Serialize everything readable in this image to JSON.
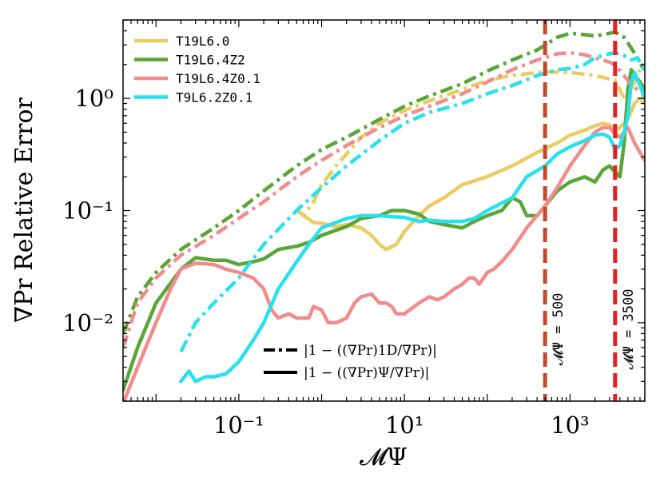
{
  "chart_data": {
    "type": "line",
    "xlabel": "𝓜Ψ",
    "ylabel": "∇Pr Relative Error",
    "xscale": "log",
    "yscale": "log",
    "xlim": [
      0.004,
      8000
    ],
    "ylim": [
      0.002,
      5
    ],
    "x_ticks": [
      {
        "value": 0.1,
        "label": "10⁻¹"
      },
      {
        "value": 10,
        "label": "10¹"
      },
      {
        "value": 1000,
        "label": "10³"
      }
    ],
    "y_ticks": [
      {
        "value": 0.01,
        "label": "10⁻²"
      },
      {
        "value": 0.1,
        "label": "10⁻¹"
      },
      {
        "value": 1,
        "label": "10⁰"
      }
    ],
    "series": [
      {
        "name": "T19L6.0",
        "color": "#e9cd62",
        "dashdot": [
          [
            0.5,
            0.105
          ],
          [
            0.6,
            0.09
          ],
          [
            0.8,
            0.12
          ],
          [
            1,
            0.17
          ],
          [
            1.5,
            0.25
          ],
          [
            2,
            0.32
          ],
          [
            3,
            0.45
          ],
          [
            5,
            0.6
          ],
          [
            8,
            0.72
          ],
          [
            10,
            0.78
          ],
          [
            20,
            0.95
          ],
          [
            50,
            1.2
          ],
          [
            100,
            1.45
          ],
          [
            200,
            1.6
          ],
          [
            400,
            1.7
          ],
          [
            600,
            1.72
          ],
          [
            1000,
            1.7
          ],
          [
            2000,
            1.6
          ],
          [
            3500,
            1.45
          ],
          [
            4500,
            1.0
          ],
          [
            5500,
            1.2
          ],
          [
            6500,
            1.6
          ],
          [
            7500,
            2.0
          ],
          [
            8000,
            1.9
          ]
        ],
        "solid": [
          [
            0.5,
            0.1
          ],
          [
            0.8,
            0.078
          ],
          [
            1,
            0.077
          ],
          [
            1.5,
            0.072
          ],
          [
            2,
            0.075
          ],
          [
            3,
            0.07
          ],
          [
            4,
            0.06
          ],
          [
            5,
            0.05
          ],
          [
            6,
            0.045
          ],
          [
            8,
            0.05
          ],
          [
            10,
            0.065
          ],
          [
            15,
            0.09
          ],
          [
            20,
            0.11
          ],
          [
            30,
            0.13
          ],
          [
            50,
            0.17
          ],
          [
            100,
            0.2
          ],
          [
            200,
            0.25
          ],
          [
            400,
            0.33
          ],
          [
            700,
            0.4
          ],
          [
            1000,
            0.47
          ],
          [
            1500,
            0.52
          ],
          [
            2000,
            0.57
          ],
          [
            2500,
            0.6
          ],
          [
            3000,
            0.58
          ],
          [
            3600,
            0.52
          ],
          [
            4000,
            0.55
          ],
          [
            5000,
            0.65
          ],
          [
            6000,
            0.9
          ],
          [
            7000,
            1.0
          ],
          [
            8000,
            0.9
          ]
        ]
      },
      {
        "name": "T19L6.4Z2",
        "color": "#5aa537",
        "dashdot": [
          [
            0.004,
            0.008
          ],
          [
            0.006,
            0.017
          ],
          [
            0.01,
            0.028
          ],
          [
            0.02,
            0.045
          ],
          [
            0.05,
            0.07
          ],
          [
            0.1,
            0.1
          ],
          [
            0.2,
            0.15
          ],
          [
            0.5,
            0.25
          ],
          [
            1,
            0.35
          ],
          [
            2,
            0.45
          ],
          [
            5,
            0.65
          ],
          [
            10,
            0.85
          ],
          [
            20,
            1.05
          ],
          [
            50,
            1.35
          ],
          [
            100,
            1.75
          ],
          [
            200,
            2.2
          ],
          [
            400,
            2.7
          ],
          [
            700,
            3.5
          ],
          [
            1000,
            3.8
          ],
          [
            1500,
            3.7
          ],
          [
            2000,
            3.6
          ],
          [
            3000,
            3.8
          ],
          [
            3500,
            3.9
          ],
          [
            4500,
            3.5
          ],
          [
            5500,
            2.8
          ],
          [
            6500,
            2.3
          ],
          [
            7500,
            1.9
          ],
          [
            8000,
            1.8
          ]
        ],
        "solid": [
          [
            0.004,
            0.0025
          ],
          [
            0.006,
            0.006
          ],
          [
            0.01,
            0.015
          ],
          [
            0.02,
            0.03
          ],
          [
            0.03,
            0.038
          ],
          [
            0.05,
            0.036
          ],
          [
            0.07,
            0.036
          ],
          [
            0.1,
            0.033
          ],
          [
            0.15,
            0.035
          ],
          [
            0.2,
            0.037
          ],
          [
            0.3,
            0.045
          ],
          [
            0.5,
            0.048
          ],
          [
            0.7,
            0.052
          ],
          [
            1,
            0.06
          ],
          [
            2,
            0.072
          ],
          [
            3,
            0.085
          ],
          [
            5,
            0.09
          ],
          [
            7,
            0.1
          ],
          [
            10,
            0.1
          ],
          [
            15,
            0.093
          ],
          [
            20,
            0.08
          ],
          [
            30,
            0.075
          ],
          [
            50,
            0.07
          ],
          [
            70,
            0.08
          ],
          [
            100,
            0.09
          ],
          [
            150,
            0.1
          ],
          [
            200,
            0.13
          ],
          [
            250,
            0.12
          ],
          [
            300,
            0.09
          ],
          [
            400,
            0.09
          ],
          [
            500,
            0.11
          ],
          [
            700,
            0.15
          ],
          [
            1000,
            0.18
          ],
          [
            1500,
            0.2
          ],
          [
            2000,
            0.18
          ],
          [
            2500,
            0.23
          ],
          [
            3000,
            0.25
          ],
          [
            3500,
            0.22
          ],
          [
            4000,
            0.2
          ],
          [
            4500,
            0.4
          ],
          [
            5000,
            1.2
          ],
          [
            5500,
            1.8
          ],
          [
            6000,
            1.6
          ],
          [
            7000,
            1.4
          ],
          [
            8000,
            1.2
          ]
        ]
      },
      {
        "name": "T19L6.4Z0.1",
        "color": "#f28c8c",
        "dashdot": [
          [
            0.004,
            0.006
          ],
          [
            0.006,
            0.015
          ],
          [
            0.01,
            0.025
          ],
          [
            0.02,
            0.04
          ],
          [
            0.05,
            0.06
          ],
          [
            0.1,
            0.085
          ],
          [
            0.2,
            0.12
          ],
          [
            0.5,
            0.2
          ],
          [
            1,
            0.28
          ],
          [
            2,
            0.38
          ],
          [
            5,
            0.55
          ],
          [
            10,
            0.7
          ],
          [
            20,
            0.85
          ],
          [
            50,
            1.1
          ],
          [
            100,
            1.4
          ],
          [
            200,
            1.8
          ],
          [
            400,
            2.2
          ],
          [
            700,
            2.5
          ],
          [
            1000,
            2.55
          ],
          [
            1500,
            2.45
          ],
          [
            2000,
            2.3
          ],
          [
            3000,
            2.1
          ],
          [
            3500,
            2.0
          ],
          [
            4500,
            1.6
          ],
          [
            5500,
            1.3
          ],
          [
            6500,
            1.2
          ],
          [
            7500,
            1.1
          ],
          [
            8000,
            1.0
          ]
        ],
        "solid": [
          [
            0.004,
            0.0019
          ],
          [
            0.006,
            0.004
          ],
          [
            0.01,
            0.01
          ],
          [
            0.015,
            0.02
          ],
          [
            0.02,
            0.03
          ],
          [
            0.03,
            0.034
          ],
          [
            0.05,
            0.033
          ],
          [
            0.07,
            0.03
          ],
          [
            0.1,
            0.028
          ],
          [
            0.15,
            0.025
          ],
          [
            0.2,
            0.02
          ],
          [
            0.25,
            0.013
          ],
          [
            0.3,
            0.011
          ],
          [
            0.4,
            0.012
          ],
          [
            0.5,
            0.011
          ],
          [
            0.7,
            0.011
          ],
          [
            0.8,
            0.014
          ],
          [
            1,
            0.013
          ],
          [
            1.2,
            0.01
          ],
          [
            1.5,
            0.01
          ],
          [
            2,
            0.011
          ],
          [
            2.5,
            0.015
          ],
          [
            3,
            0.017
          ],
          [
            4,
            0.018
          ],
          [
            5,
            0.015
          ],
          [
            6,
            0.015
          ],
          [
            7,
            0.014
          ],
          [
            8,
            0.012
          ],
          [
            10,
            0.012
          ],
          [
            15,
            0.015
          ],
          [
            20,
            0.017
          ],
          [
            25,
            0.016
          ],
          [
            30,
            0.017
          ],
          [
            40,
            0.02
          ],
          [
            50,
            0.022
          ],
          [
            60,
            0.025
          ],
          [
            70,
            0.025
          ],
          [
            80,
            0.022
          ],
          [
            100,
            0.028
          ],
          [
            120,
            0.03
          ],
          [
            150,
            0.035
          ],
          [
            200,
            0.045
          ],
          [
            300,
            0.07
          ],
          [
            500,
            0.11
          ],
          [
            700,
            0.16
          ],
          [
            1000,
            0.25
          ],
          [
            1500,
            0.38
          ],
          [
            2000,
            0.5
          ],
          [
            2500,
            0.55
          ],
          [
            3000,
            0.55
          ],
          [
            3500,
            0.48
          ],
          [
            4000,
            0.45
          ],
          [
            4500,
            0.5
          ],
          [
            5000,
            0.55
          ],
          [
            6000,
            0.4
          ],
          [
            7000,
            0.33
          ],
          [
            8000,
            0.28
          ]
        ]
      },
      {
        "name": "T9L6.2Z0.1",
        "color": "#27e1ee",
        "dashdot": [
          [
            0.02,
            0.0055
          ],
          [
            0.03,
            0.01
          ],
          [
            0.05,
            0.015
          ],
          [
            0.1,
            0.025
          ],
          [
            0.2,
            0.05
          ],
          [
            0.5,
            0.1
          ],
          [
            1,
            0.16
          ],
          [
            2,
            0.25
          ],
          [
            5,
            0.42
          ],
          [
            10,
            0.6
          ],
          [
            20,
            0.75
          ],
          [
            50,
            0.9
          ],
          [
            100,
            1.1
          ],
          [
            200,
            1.3
          ],
          [
            400,
            1.6
          ],
          [
            700,
            1.8
          ],
          [
            1000,
            1.85
          ],
          [
            1500,
            2.0
          ],
          [
            2000,
            2.3
          ],
          [
            3000,
            2.5
          ],
          [
            3500,
            2.55
          ],
          [
            4500,
            2.4
          ],
          [
            5500,
            2.2
          ],
          [
            6500,
            2.3
          ],
          [
            7500,
            1.9
          ],
          [
            8000,
            1.8
          ]
        ],
        "solid": [
          [
            0.02,
            0.003
          ],
          [
            0.025,
            0.0037
          ],
          [
            0.03,
            0.003
          ],
          [
            0.04,
            0.0033
          ],
          [
            0.05,
            0.0033
          ],
          [
            0.07,
            0.0035
          ],
          [
            0.1,
            0.0045
          ],
          [
            0.15,
            0.007
          ],
          [
            0.2,
            0.01
          ],
          [
            0.3,
            0.02
          ],
          [
            0.5,
            0.035
          ],
          [
            0.7,
            0.05
          ],
          [
            1,
            0.07
          ],
          [
            2,
            0.085
          ],
          [
            3,
            0.09
          ],
          [
            5,
            0.09
          ],
          [
            7,
            0.088
          ],
          [
            10,
            0.087
          ],
          [
            15,
            0.08
          ],
          [
            20,
            0.082
          ],
          [
            30,
            0.08
          ],
          [
            50,
            0.08
          ],
          [
            70,
            0.085
          ],
          [
            100,
            0.1
          ],
          [
            200,
            0.13
          ],
          [
            300,
            0.2
          ],
          [
            500,
            0.25
          ],
          [
            700,
            0.32
          ],
          [
            1000,
            0.37
          ],
          [
            1500,
            0.42
          ],
          [
            2000,
            0.47
          ],
          [
            2500,
            0.48
          ],
          [
            3000,
            0.45
          ],
          [
            3500,
            0.35
          ],
          [
            4000,
            0.38
          ],
          [
            4500,
            0.5
          ],
          [
            5000,
            0.7
          ],
          [
            5500,
            1.4
          ],
          [
            6000,
            1.7
          ],
          [
            7000,
            1.3
          ],
          [
            8000,
            1.0
          ]
        ]
      }
    ],
    "vlines": [
      {
        "x": 500,
        "label": "𝓜Ψ = 500",
        "color": "#bf4a2c"
      },
      {
        "x": 3500,
        "label": "𝓜Ψ = 3500",
        "color": "#ee1c1c"
      }
    ],
    "legend_position": "top-left",
    "style_legend": [
      {
        "style": "dashdot",
        "label": "|1 − ((∇Pr)1D/∇Pr)|"
      },
      {
        "style": "solid",
        "label": "|1 − ((∇Pr)Ψ/∇Pr)|"
      }
    ]
  }
}
